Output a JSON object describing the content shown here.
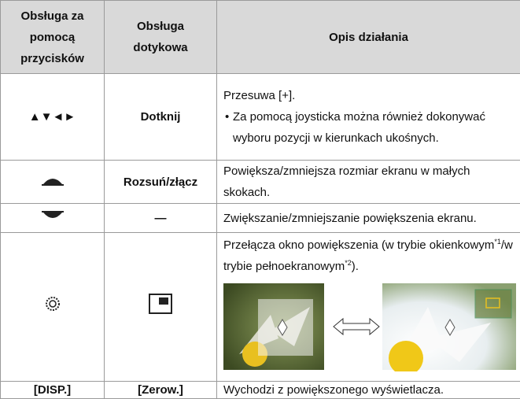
{
  "table": {
    "header": [
      "Obsługa za pomocą przycisków",
      "Obsługa dotykowa",
      "Opis działania"
    ],
    "rows": [
      {
        "button": "▲▼◄►",
        "touch": "Dotknij",
        "desc": "Przesuwa [+].",
        "bullet": "Za pomocą joysticka można również dokonywać wyboru pozycji w kierunkach ukośnych."
      },
      {
        "touch": "Rozsuń/złącz",
        "desc": "Powiększa/zmniejsza rozmiar ekranu w małych skokach."
      },
      {
        "touch": "—",
        "desc": "Zwiększanie/zmniejszanie powiększenia ekranu."
      },
      {
        "desc_parts": [
          "Przełącza okno powiększenia (w trybie okienkowym",
          "*1",
          "/w trybie pełnoekranowym",
          "*2",
          ")."
        ]
      },
      {
        "button": "[DISP.]",
        "touch": "[Zerow.]",
        "desc": "Wychodzi z powiększonego wyświetlacza."
      }
    ]
  }
}
